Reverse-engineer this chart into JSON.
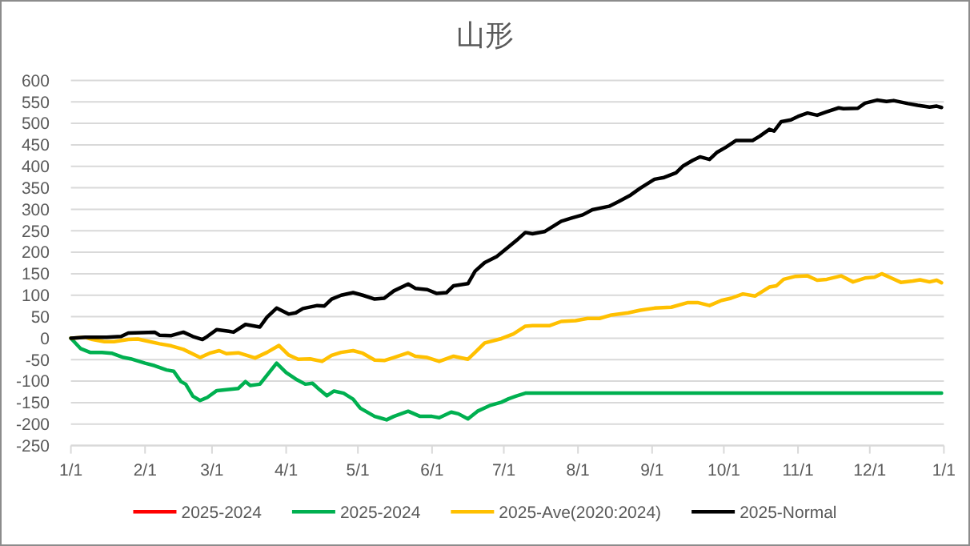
{
  "chart_data": {
    "type": "line",
    "title": "山形",
    "xlim": [
      "2025-01-01",
      "2026-01-01"
    ],
    "xticks": [
      {
        "value": "2025-01-01",
        "label": "1/1"
      },
      {
        "value": "2025-02-01",
        "label": "2/1"
      },
      {
        "value": "2025-03-01",
        "label": "3/1"
      },
      {
        "value": "2025-04-01",
        "label": "4/1"
      },
      {
        "value": "2025-05-01",
        "label": "5/1"
      },
      {
        "value": "2025-06-01",
        "label": "6/1"
      },
      {
        "value": "2025-07-01",
        "label": "7/1"
      },
      {
        "value": "2025-08-01",
        "label": "8/1"
      },
      {
        "value": "2025-09-01",
        "label": "9/1"
      },
      {
        "value": "2025-10-01",
        "label": "10/1"
      },
      {
        "value": "2025-11-01",
        "label": "11/1"
      },
      {
        "value": "2025-12-01",
        "label": "12/1"
      },
      {
        "value": "2026-01-01",
        "label": "1/1"
      }
    ],
    "ylim": [
      -250,
      600
    ],
    "yticks": [
      -250,
      -200,
      -150,
      -100,
      -50,
      0,
      50,
      100,
      150,
      200,
      250,
      300,
      350,
      400,
      450,
      500,
      550,
      600
    ],
    "grid": "y",
    "legend": "bottom",
    "series": [
      {
        "name": "2025-2024",
        "color": "#ff0000"
      },
      {
        "name": "2025-2024",
        "color": "#00b050",
        "x": [
          "2025-01-01",
          "2025-01-05",
          "2025-01-09",
          "2025-01-14",
          "2025-01-18",
          "2025-01-23",
          "2025-01-26",
          "2025-02-01",
          "2025-02-05",
          "2025-02-10",
          "2025-02-13",
          "2025-02-16",
          "2025-02-18",
          "2025-02-21",
          "2025-02-24",
          "2025-02-27",
          "2025-03-03",
          "2025-03-07",
          "2025-03-12",
          "2025-03-15",
          "2025-03-17",
          "2025-03-21",
          "2025-03-24",
          "2025-03-28",
          "2025-04-01",
          "2025-04-05",
          "2025-04-09",
          "2025-04-12",
          "2025-04-15",
          "2025-04-18",
          "2025-04-21",
          "2025-04-25",
          "2025-04-29",
          "2025-05-02",
          "2025-05-08",
          "2025-05-10",
          "2025-05-13",
          "2025-05-16",
          "2025-05-22",
          "2025-05-27",
          "2025-06-01",
          "2025-06-04",
          "2025-06-09",
          "2025-06-12",
          "2025-06-16",
          "2025-06-20",
          "2025-06-25",
          "2025-06-30",
          "2025-07-03",
          "2025-07-06",
          "2025-07-10",
          "2025-12-31"
        ],
        "values": [
          0,
          -24,
          -33,
          -33,
          -35,
          -45,
          -48,
          -58,
          -64,
          -74,
          -77,
          -101,
          -107,
          -135,
          -145,
          -138,
          -122,
          -120,
          -117,
          -101,
          -110,
          -107,
          -86,
          -58,
          -80,
          -95,
          -107,
          -105,
          -120,
          -134,
          -123,
          -128,
          -142,
          -163,
          -182,
          -185,
          -190,
          -182,
          -170,
          -182,
          -182,
          -185,
          -172,
          -176,
          -188,
          -170,
          -157,
          -149,
          -141,
          -135,
          -128,
          -128
        ]
      },
      {
        "name": "2025-Ave(2020:2024)",
        "color": "#ffc000",
        "x": [
          "2025-01-01",
          "2025-01-07",
          "2025-01-10",
          "2025-01-15",
          "2025-01-19",
          "2025-01-25",
          "2025-01-29",
          "2025-02-03",
          "2025-02-07",
          "2025-02-12",
          "2025-02-17",
          "2025-02-24",
          "2025-02-28",
          "2025-03-04",
          "2025-03-07",
          "2025-03-12",
          "2025-03-15",
          "2025-03-19",
          "2025-03-24",
          "2025-03-29",
          "2025-04-02",
          "2025-04-06",
          "2025-04-11",
          "2025-04-16",
          "2025-04-20",
          "2025-04-24",
          "2025-04-29",
          "2025-05-03",
          "2025-05-08",
          "2025-05-12",
          "2025-05-16",
          "2025-05-22",
          "2025-05-25",
          "2025-05-30",
          "2025-06-04",
          "2025-06-10",
          "2025-06-16",
          "2025-06-19",
          "2025-06-23",
          "2025-06-30",
          "2025-07-05",
          "2025-07-10",
          "2025-07-13",
          "2025-07-20",
          "2025-07-25",
          "2025-07-31",
          "2025-08-05",
          "2025-08-10",
          "2025-08-15",
          "2025-08-22",
          "2025-08-27",
          "2025-09-02",
          "2025-09-09",
          "2025-09-16",
          "2025-09-20",
          "2025-09-25",
          "2025-09-30",
          "2025-10-04",
          "2025-10-09",
          "2025-10-14",
          "2025-10-20",
          "2025-10-23",
          "2025-10-26",
          "2025-10-31",
          "2025-11-05",
          "2025-11-09",
          "2025-11-13",
          "2025-11-19",
          "2025-11-24",
          "2025-11-29",
          "2025-12-03",
          "2025-12-06",
          "2025-12-10",
          "2025-12-14",
          "2025-12-19",
          "2025-12-22",
          "2025-12-26",
          "2025-12-29",
          "2025-12-31"
        ],
        "values": [
          0,
          2,
          -3,
          -8,
          -8,
          -3,
          -2,
          -8,
          -13,
          -18,
          -26,
          -45,
          -35,
          -29,
          -36,
          -34,
          -39,
          -46,
          -33,
          -17,
          -39,
          -49,
          -48,
          -54,
          -40,
          -33,
          -29,
          -35,
          -51,
          -52,
          -45,
          -34,
          -42,
          -45,
          -54,
          -42,
          -49,
          -33,
          -11,
          -1,
          10,
          28,
          29,
          29,
          39,
          41,
          46,
          46,
          54,
          59,
          65,
          70,
          72,
          83,
          83,
          76,
          88,
          93,
          103,
          98,
          119,
          122,
          137,
          144,
          145,
          135,
          137,
          145,
          131,
          140,
          142,
          150,
          140,
          130,
          133,
          136,
          131,
          135,
          129
        ]
      },
      {
        "name": "2025-Normal",
        "color": "#000000",
        "x": [
          "2025-01-01",
          "2025-01-07",
          "2025-01-16",
          "2025-01-22",
          "2025-01-25",
          "2025-02-05",
          "2025-02-07",
          "2025-02-12",
          "2025-02-17",
          "2025-02-21",
          "2025-02-25",
          "2025-02-27",
          "2025-03-03",
          "2025-03-08",
          "2025-03-10",
          "2025-03-15",
          "2025-03-21",
          "2025-03-24",
          "2025-03-28",
          "2025-04-02",
          "2025-04-05",
          "2025-04-08",
          "2025-04-14",
          "2025-04-17",
          "2025-04-20",
          "2025-04-24",
          "2025-04-29",
          "2025-05-03",
          "2025-05-08",
          "2025-05-12",
          "2025-05-16",
          "2025-05-22",
          "2025-05-25",
          "2025-05-30",
          "2025-06-03",
          "2025-06-07",
          "2025-06-10",
          "2025-06-16",
          "2025-06-19",
          "2025-06-23",
          "2025-06-28",
          "2025-07-02",
          "2025-07-07",
          "2025-07-10",
          "2025-07-13",
          "2025-07-18",
          "2025-07-25",
          "2025-07-29",
          "2025-08-03",
          "2025-08-07",
          "2025-08-14",
          "2025-08-18",
          "2025-08-23",
          "2025-08-27",
          "2025-09-02",
          "2025-09-06",
          "2025-09-11",
          "2025-09-14",
          "2025-09-18",
          "2025-09-21",
          "2025-09-25",
          "2025-09-28",
          "2025-10-02",
          "2025-10-06",
          "2025-10-13",
          "2025-10-16",
          "2025-10-20",
          "2025-10-22",
          "2025-10-25",
          "2025-10-29",
          "2025-11-01",
          "2025-11-05",
          "2025-11-09",
          "2025-11-13",
          "2025-11-18",
          "2025-11-20",
          "2025-11-26",
          "2025-11-29",
          "2025-12-04",
          "2025-12-08",
          "2025-12-11",
          "2025-12-17",
          "2025-12-21",
          "2025-12-26",
          "2025-12-29",
          "2025-12-31"
        ],
        "values": [
          0,
          2,
          2,
          4,
          12,
          14,
          7,
          6,
          14,
          4,
          -3,
          4,
          20,
          16,
          14,
          32,
          26,
          49,
          70,
          56,
          59,
          69,
          76,
          75,
          91,
          100,
          106,
          100,
          91,
          93,
          110,
          126,
          116,
          113,
          104,
          106,
          122,
          127,
          156,
          176,
          190,
          208,
          231,
          246,
          243,
          248,
          272,
          279,
          287,
          299,
          307,
          318,
          333,
          349,
          370,
          374,
          385,
          401,
          414,
          422,
          416,
          432,
          445,
          460,
          460,
          470,
          486,
          482,
          504,
          508,
          516,
          524,
          519,
          527,
          536,
          534,
          535,
          547,
          554,
          551,
          553,
          546,
          542,
          538,
          540,
          537
        ]
      }
    ]
  }
}
